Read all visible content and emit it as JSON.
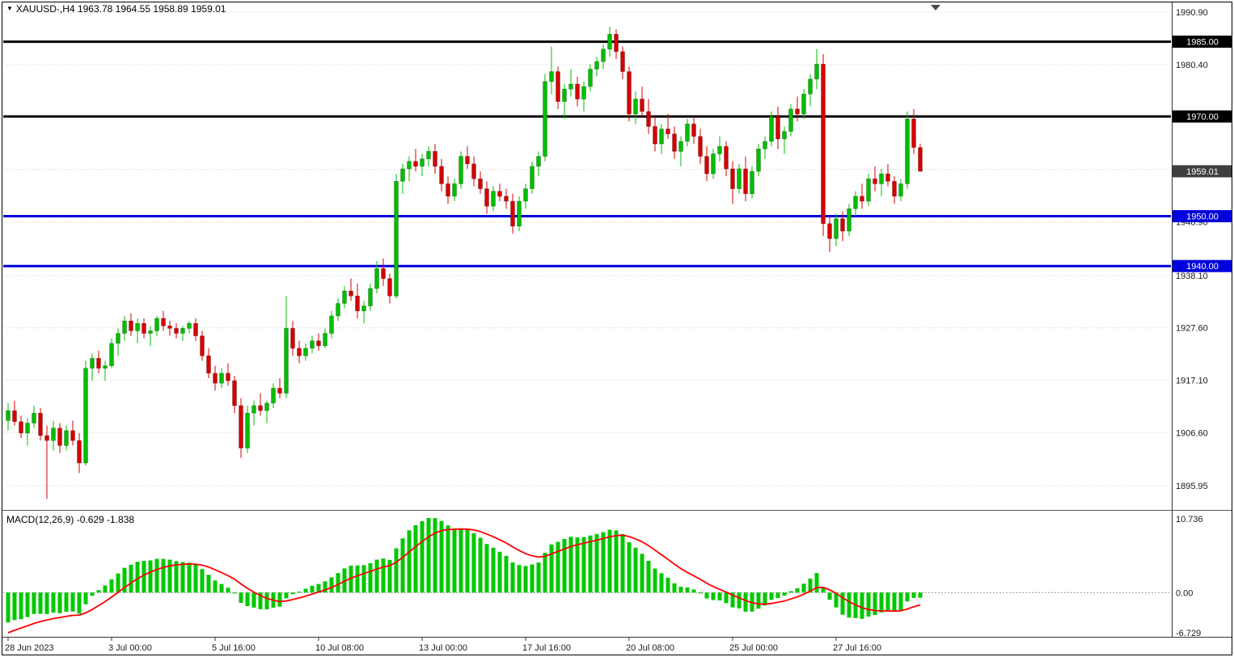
{
  "window": {
    "marker_glyph": "▼",
    "symbol": "XAUUSD-",
    "timeframe": "H4",
    "title_display": "XAUUSD-,H4  1963.78 1964.55 1958.89 1959.01"
  },
  "colors": {
    "background": "#FFFFFF",
    "grid": "#C8C8C8",
    "bull": "#00BE00",
    "bear": "#D40000",
    "macd_histogram": "#00C800",
    "macd_signal": "#FF0000",
    "black_line": "#000000",
    "blue_line": "#0000DC",
    "current_price_tag_bg": "#3F3F3F",
    "axis_text": "#1A1A1A"
  },
  "chart_data": [
    {
      "type": "candlestick",
      "title": "XAUUSD-,H4 1963.78 1964.55 1958.89 1959.01",
      "symbol": "XAUUSD-",
      "timeframe": "H4",
      "current_ohlc": {
        "open": 1963.78,
        "high": 1964.55,
        "low": 1958.89,
        "close": 1959.01
      },
      "y_axis": {
        "ylim": [
          1891.25,
          1992.55
        ],
        "gridlines": [
          {
            "price": 1990.9,
            "label": "1990.90"
          },
          {
            "price": 1980.4,
            "label": "1980.40"
          },
          {
            "price": 1969.9,
            "label": "1969.90"
          },
          {
            "price": 1959.4,
            "label": "1959.40"
          },
          {
            "price": 1948.9,
            "label": "1948.90"
          },
          {
            "price": 1938.1,
            "label": "1938.10"
          },
          {
            "price": 1927.6,
            "label": "1927.60"
          },
          {
            "price": 1917.1,
            "label": "1917.10"
          },
          {
            "price": 1906.6,
            "label": "1906.60"
          },
          {
            "price": 1895.95,
            "label": "1895.95"
          }
        ]
      },
      "x_axis": {
        "labels": [
          {
            "bar_index": 0,
            "label": "28 Jun 2023"
          },
          {
            "bar_index": 16,
            "label": "3 Jul 00:00"
          },
          {
            "bar_index": 32,
            "label": "5 Jul 16:00"
          },
          {
            "bar_index": 48,
            "label": "10 Jul 08:00"
          },
          {
            "bar_index": 64,
            "label": "13 Jul 00:00"
          },
          {
            "bar_index": 80,
            "label": "17 Jul 16:00"
          },
          {
            "bar_index": 96,
            "label": "20 Jul 08:00"
          },
          {
            "bar_index": 112,
            "label": "25 Jul 00:00"
          },
          {
            "bar_index": 128,
            "label": "27 Jul 16:00"
          }
        ]
      },
      "horizontal_lines": [
        {
          "price": 1985.0,
          "label": "1985.00",
          "color": "#000000"
        },
        {
          "price": 1970.0,
          "label": "1970.00",
          "color": "#000000"
        },
        {
          "price": 1950.0,
          "label": "1950.00",
          "color": "#0000DC"
        },
        {
          "price": 1940.0,
          "label": "1940.00",
          "color": "#0000DC"
        }
      ],
      "current_price_tag": {
        "price": 1959.01,
        "label": "1959.01"
      },
      "candles_ohlc": [
        [
          1909.0,
          1912.5,
          1907.0,
          1911.0
        ],
        [
          1911.0,
          1913.0,
          1908.0,
          1908.8
        ],
        [
          1908.8,
          1910.0,
          1905.5,
          1906.5
        ],
        [
          1906.5,
          1909.5,
          1904.0,
          1908.5
        ],
        [
          1908.5,
          1912.0,
          1907.5,
          1910.5
        ],
        [
          1910.5,
          1911.5,
          1905.0,
          1906.0
        ],
        [
          1906.0,
          1908.0,
          1893.3,
          1905.0
        ],
        [
          1905.0,
          1909.0,
          1903.0,
          1907.5
        ],
        [
          1907.5,
          1908.5,
          1902.5,
          1904.0
        ],
        [
          1904.0,
          1908.0,
          1903.0,
          1907.0
        ],
        [
          1907.0,
          1909.0,
          1904.0,
          1905.0
        ],
        [
          1905.0,
          1906.5,
          1898.5,
          1900.5
        ],
        [
          1900.5,
          1921.0,
          1900.0,
          1919.5
        ],
        [
          1919.5,
          1922.5,
          1917.0,
          1921.5
        ],
        [
          1921.5,
          1923.0,
          1918.5,
          1919.5
        ],
        [
          1919.5,
          1921.0,
          1917.0,
          1920.0
        ],
        [
          1920.0,
          1925.5,
          1919.5,
          1924.5
        ],
        [
          1924.5,
          1927.5,
          1922.0,
          1926.5
        ],
        [
          1926.5,
          1930.0,
          1925.0,
          1929.0
        ],
        [
          1929.0,
          1930.5,
          1926.0,
          1927.0
        ],
        [
          1927.0,
          1929.5,
          1924.5,
          1928.5
        ],
        [
          1928.5,
          1929.5,
          1925.5,
          1926.5
        ],
        [
          1926.5,
          1928.0,
          1924.0,
          1927.0
        ],
        [
          1927.0,
          1930.0,
          1926.0,
          1929.5
        ],
        [
          1929.5,
          1931.0,
          1927.0,
          1928.0
        ],
        [
          1928.0,
          1929.0,
          1926.0,
          1927.5
        ],
        [
          1927.5,
          1928.5,
          1925.5,
          1926.5
        ],
        [
          1926.5,
          1928.0,
          1925.0,
          1927.5
        ],
        [
          1927.5,
          1929.0,
          1926.5,
          1928.5
        ],
        [
          1928.5,
          1929.5,
          1925.0,
          1926.0
        ],
        [
          1926.0,
          1927.0,
          1921.0,
          1922.0
        ],
        [
          1922.0,
          1923.5,
          1917.5,
          1918.5
        ],
        [
          1918.5,
          1920.0,
          1915.0,
          1916.5
        ],
        [
          1916.5,
          1919.5,
          1915.5,
          1918.5
        ],
        [
          1918.5,
          1920.5,
          1916.0,
          1917.0
        ],
        [
          1917.0,
          1918.0,
          1910.5,
          1912.0
        ],
        [
          1912.0,
          1913.5,
          1901.5,
          1903.5
        ],
        [
          1903.5,
          1912.0,
          1902.5,
          1910.5
        ],
        [
          1910.5,
          1913.0,
          1908.0,
          1912.0
        ],
        [
          1912.0,
          1914.5,
          1910.0,
          1911.0
        ],
        [
          1911.0,
          1913.0,
          1908.5,
          1912.5
        ],
        [
          1912.5,
          1916.5,
          1911.5,
          1915.5
        ],
        [
          1915.5,
          1917.5,
          1913.5,
          1914.5
        ],
        [
          1914.5,
          1934.0,
          1913.5,
          1927.5
        ],
        [
          1927.5,
          1929.0,
          1922.0,
          1923.5
        ],
        [
          1923.5,
          1925.0,
          1920.5,
          1922.0
        ],
        [
          1922.0,
          1924.5,
          1921.0,
          1923.5
        ],
        [
          1923.5,
          1926.0,
          1922.5,
          1925.0
        ],
        [
          1925.0,
          1926.5,
          1923.0,
          1924.0
        ],
        [
          1924.0,
          1927.5,
          1923.5,
          1926.5
        ],
        [
          1926.5,
          1931.0,
          1925.5,
          1930.0
        ],
        [
          1930.0,
          1933.5,
          1929.0,
          1932.5
        ],
        [
          1932.5,
          1936.0,
          1931.5,
          1935.0
        ],
        [
          1935.0,
          1937.5,
          1933.0,
          1934.0
        ],
        [
          1934.0,
          1936.5,
          1929.5,
          1931.0
        ],
        [
          1931.0,
          1933.0,
          1928.5,
          1932.0
        ],
        [
          1932.0,
          1936.5,
          1931.0,
          1935.5
        ],
        [
          1935.5,
          1941.0,
          1934.5,
          1939.5
        ],
        [
          1939.5,
          1941.5,
          1936.0,
          1937.5
        ],
        [
          1937.5,
          1938.5,
          1932.5,
          1934.0
        ],
        [
          1934.0,
          1958.5,
          1933.5,
          1957.0
        ],
        [
          1957.0,
          1960.5,
          1954.5,
          1959.5
        ],
        [
          1959.5,
          1962.0,
          1957.0,
          1961.0
        ],
        [
          1961.0,
          1963.5,
          1959.0,
          1960.0
        ],
        [
          1960.0,
          1962.5,
          1958.0,
          1961.5
        ],
        [
          1961.5,
          1964.0,
          1960.0,
          1963.0
        ],
        [
          1963.0,
          1964.5,
          1958.5,
          1960.0
        ],
        [
          1960.0,
          1961.5,
          1955.0,
          1956.5
        ],
        [
          1956.5,
          1958.0,
          1952.5,
          1954.0
        ],
        [
          1954.0,
          1957.5,
          1953.0,
          1956.5
        ],
        [
          1956.5,
          1963.0,
          1955.5,
          1962.0
        ],
        [
          1962.0,
          1964.0,
          1959.5,
          1960.5
        ],
        [
          1960.5,
          1962.0,
          1956.0,
          1957.5
        ],
        [
          1957.5,
          1959.0,
          1954.5,
          1955.5
        ],
        [
          1955.5,
          1957.0,
          1950.5,
          1952.0
        ],
        [
          1952.0,
          1956.0,
          1951.0,
          1955.0
        ],
        [
          1955.0,
          1956.5,
          1953.0,
          1954.0
        ],
        [
          1954.0,
          1955.5,
          1951.5,
          1953.0
        ],
        [
          1953.0,
          1954.5,
          1946.5,
          1948.0
        ],
        [
          1948.0,
          1954.0,
          1947.0,
          1953.0
        ],
        [
          1953.0,
          1956.5,
          1951.5,
          1955.5
        ],
        [
          1955.5,
          1961.0,
          1954.5,
          1960.0
        ],
        [
          1960.0,
          1963.0,
          1958.0,
          1962.0
        ],
        [
          1962.0,
          1978.5,
          1961.0,
          1977.0
        ],
        [
          1977.0,
          1984.0,
          1974.5,
          1979.0
        ],
        [
          1979.0,
          1980.0,
          1971.5,
          1973.0
        ],
        [
          1973.0,
          1976.5,
          1969.5,
          1975.5
        ],
        [
          1975.5,
          1979.5,
          1974.0,
          1976.5
        ],
        [
          1976.5,
          1978.0,
          1972.0,
          1973.5
        ],
        [
          1973.5,
          1977.0,
          1971.0,
          1976.0
        ],
        [
          1976.0,
          1980.5,
          1975.0,
          1979.5
        ],
        [
          1979.5,
          1982.0,
          1978.0,
          1981.0
        ],
        [
          1981.0,
          1984.5,
          1979.5,
          1983.5
        ],
        [
          1983.5,
          1988.0,
          1982.0,
          1986.5
        ],
        [
          1986.5,
          1987.5,
          1981.5,
          1983.0
        ],
        [
          1983.0,
          1984.0,
          1977.5,
          1979.0
        ],
        [
          1979.0,
          1980.0,
          1969.0,
          1970.5
        ],
        [
          1970.5,
          1975.0,
          1968.5,
          1973.5
        ],
        [
          1973.5,
          1976.0,
          1970.0,
          1971.0
        ],
        [
          1971.0,
          1973.5,
          1966.5,
          1968.0
        ],
        [
          1968.0,
          1970.0,
          1963.0,
          1964.5
        ],
        [
          1964.5,
          1968.5,
          1962.5,
          1967.5
        ],
        [
          1967.5,
          1970.5,
          1965.5,
          1966.5
        ],
        [
          1966.5,
          1968.0,
          1961.5,
          1963.0
        ],
        [
          1963.0,
          1966.0,
          1960.0,
          1965.0
        ],
        [
          1965.0,
          1969.5,
          1964.0,
          1968.5
        ],
        [
          1968.5,
          1970.0,
          1964.5,
          1966.0
        ],
        [
          1966.0,
          1967.5,
          1960.5,
          1962.0
        ],
        [
          1962.0,
          1964.0,
          1957.0,
          1958.5
        ],
        [
          1958.5,
          1963.5,
          1957.5,
          1962.5
        ],
        [
          1962.5,
          1966.0,
          1961.0,
          1964.0
        ],
        [
          1964.0,
          1965.0,
          1958.0,
          1959.5
        ],
        [
          1959.5,
          1961.0,
          1952.5,
          1955.5
        ],
        [
          1955.5,
          1960.5,
          1954.5,
          1959.5
        ],
        [
          1959.5,
          1962.0,
          1953.0,
          1954.5
        ],
        [
          1954.5,
          1960.0,
          1953.5,
          1959.0
        ],
        [
          1959.0,
          1964.5,
          1958.0,
          1963.5
        ],
        [
          1963.5,
          1966.0,
          1961.5,
          1965.0
        ],
        [
          1965.0,
          1971.0,
          1964.0,
          1970.0
        ],
        [
          1970.0,
          1972.0,
          1963.5,
          1965.5
        ],
        [
          1965.5,
          1968.0,
          1962.5,
          1967.0
        ],
        [
          1967.0,
          1972.5,
          1966.0,
          1971.5
        ],
        [
          1971.5,
          1974.0,
          1969.0,
          1970.5
        ],
        [
          1970.5,
          1975.5,
          1969.5,
          1974.5
        ],
        [
          1974.5,
          1978.5,
          1972.0,
          1977.5
        ],
        [
          1977.5,
          1983.5,
          1975.5,
          1980.5
        ],
        [
          1980.5,
          1982.5,
          1946.0,
          1948.5
        ],
        [
          1948.5,
          1950.0,
          1942.8,
          1945.5
        ],
        [
          1945.5,
          1950.5,
          1944.0,
          1949.5
        ],
        [
          1949.5,
          1951.0,
          1945.0,
          1947.0
        ],
        [
          1947.0,
          1952.5,
          1946.0,
          1951.5
        ],
        [
          1951.5,
          1955.0,
          1950.0,
          1954.0
        ],
        [
          1954.0,
          1956.5,
          1951.5,
          1953.0
        ],
        [
          1953.0,
          1958.5,
          1952.0,
          1957.5
        ],
        [
          1957.5,
          1960.0,
          1955.0,
          1956.5
        ],
        [
          1956.5,
          1959.5,
          1954.0,
          1958.5
        ],
        [
          1958.5,
          1960.5,
          1956.0,
          1957.0
        ],
        [
          1957.0,
          1958.0,
          1952.5,
          1954.0
        ],
        [
          1954.0,
          1957.5,
          1953.0,
          1956.5
        ],
        [
          1956.5,
          1971.0,
          1955.5,
          1969.5
        ],
        [
          1969.5,
          1971.5,
          1962.5,
          1963.78
        ],
        [
          1963.78,
          1964.55,
          1958.89,
          1959.01
        ]
      ]
    },
    {
      "type": "bar",
      "title": "MACD(12,26,9) -0.629 -1.838",
      "indicator": "MACD",
      "params": [
        12,
        26,
        9
      ],
      "current_values": {
        "macd": -0.629,
        "signal": -1.838
      },
      "axis_labels": {
        "top": "10.736",
        "zero": "0.00",
        "bottom": "-6.729"
      },
      "legend_position": "top-left",
      "grid": "zero-line-only"
    }
  ]
}
